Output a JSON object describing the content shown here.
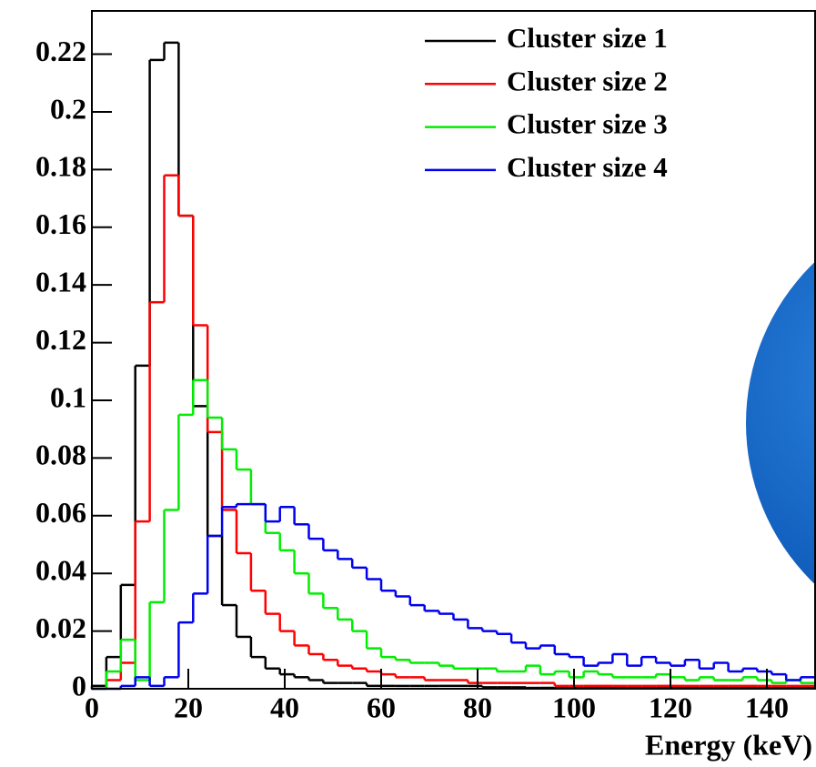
{
  "chart_data": {
    "type": "histogram",
    "xlabel": "Energy (keV)",
    "bins": [
      0,
      3,
      6,
      9,
      12,
      15,
      18,
      21,
      24,
      27,
      30,
      33,
      36,
      39,
      42,
      45,
      48,
      51,
      54,
      57,
      60,
      63,
      66,
      69,
      72,
      75,
      78,
      81,
      84,
      87,
      90,
      93,
      96,
      99,
      102,
      105,
      108,
      111,
      114,
      117,
      120,
      123,
      126,
      129,
      132,
      135,
      138,
      141,
      144,
      147,
      150
    ],
    "series": [
      {
        "name": "Cluster size 1",
        "color": "#000000",
        "values": [
          0.001,
          0.011,
          0.036,
          0.112,
          0.218,
          0.224,
          0.164,
          0.098,
          0.053,
          0.029,
          0.018,
          0.011,
          0.007,
          0.005,
          0.004,
          0.003,
          0.002,
          0.002,
          0.002,
          0.001,
          0.001,
          0.001,
          0.001,
          0.001,
          0.001,
          0.001,
          0.001,
          0.0005,
          0.0005,
          0.0005,
          0.0003,
          0.0003,
          0.0003,
          0.0003,
          0.0003,
          0.0003,
          0.0003,
          0.0003,
          0.0003,
          0.0003,
          0.0003,
          0.0003,
          0.0003,
          0.0003,
          0.0003,
          0.0003,
          0.0003,
          0.0003,
          0.0003,
          0.0003
        ]
      },
      {
        "name": "Cluster size 2",
        "color": "#ff0000",
        "values": [
          0,
          0.003,
          0.009,
          0.058,
          0.134,
          0.178,
          0.164,
          0.126,
          0.089,
          0.062,
          0.047,
          0.034,
          0.026,
          0.02,
          0.015,
          0.012,
          0.01,
          0.008,
          0.007,
          0.006,
          0.005,
          0.004,
          0.004,
          0.003,
          0.003,
          0.003,
          0.002,
          0.002,
          0.002,
          0.002,
          0.002,
          0.002,
          0.001,
          0.001,
          0.001,
          0.001,
          0.001,
          0.001,
          0.001,
          0.001,
          0.001,
          0.001,
          0.001,
          0.001,
          0.001,
          0.001,
          0.001,
          0.001,
          0.001,
          0.001
        ]
      },
      {
        "name": "Cluster size 3",
        "color": "#00ee00",
        "values": [
          0,
          0.006,
          0.017,
          0.003,
          0.03,
          0.062,
          0.095,
          0.107,
          0.094,
          0.083,
          0.076,
          0.064,
          0.054,
          0.048,
          0.04,
          0.033,
          0.028,
          0.024,
          0.02,
          0.014,
          0.011,
          0.01,
          0.009,
          0.009,
          0.008,
          0.007,
          0.007,
          0.007,
          0.006,
          0.006,
          0.008,
          0.005,
          0.006,
          0.004,
          0.006,
          0.005,
          0.004,
          0.004,
          0.004,
          0.005,
          0.004,
          0.003,
          0.004,
          0.003,
          0.003,
          0.004,
          0.003,
          0.002,
          0.003,
          0.002
        ]
      },
      {
        "name": "Cluster size 4",
        "color": "#0000ee",
        "values": [
          0,
          0,
          0.001,
          0.004,
          0.001,
          0.004,
          0.023,
          0.033,
          0.053,
          0.063,
          0.064,
          0.064,
          0.058,
          0.063,
          0.057,
          0.052,
          0.048,
          0.045,
          0.042,
          0.038,
          0.034,
          0.032,
          0.029,
          0.027,
          0.026,
          0.024,
          0.021,
          0.02,
          0.019,
          0.016,
          0.014,
          0.015,
          0.012,
          0.011,
          0.008,
          0.009,
          0.012,
          0.008,
          0.011,
          0.009,
          0.008,
          0.01,
          0.007,
          0.009,
          0.006,
          0.007,
          0.006,
          0.005,
          0.003,
          0.004
        ]
      }
    ],
    "xlim": [
      0,
      150
    ],
    "ylim": [
      0,
      0.235
    ],
    "xticks": [
      0,
      20,
      40,
      60,
      80,
      100,
      120,
      140
    ],
    "yticks": [
      0,
      0.02,
      0.04,
      0.06,
      0.08,
      0.1,
      0.12,
      0.14,
      0.16,
      0.18,
      0.2,
      0.22
    ]
  }
}
